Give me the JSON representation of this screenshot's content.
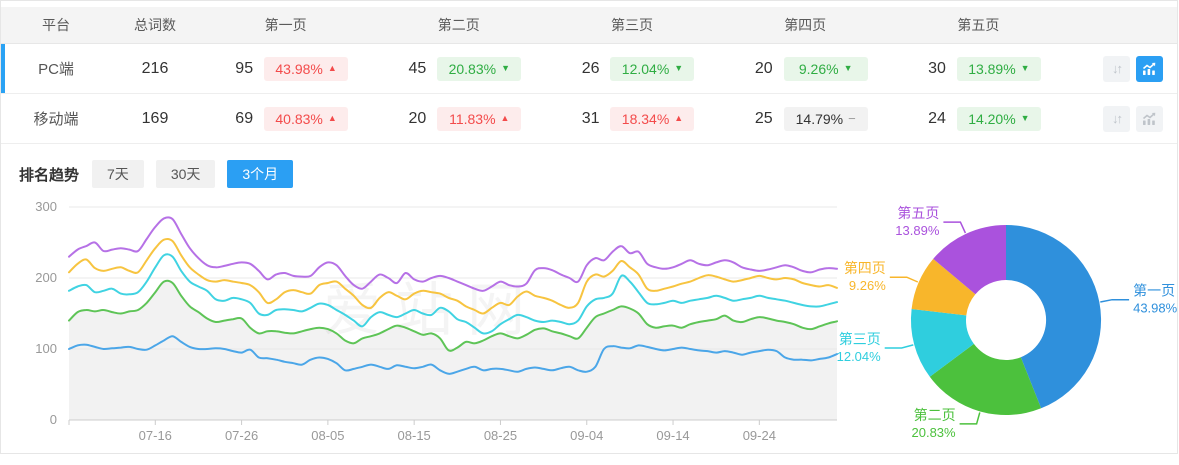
{
  "table": {
    "headers": {
      "platform": "平台",
      "total": "总词数",
      "pages": [
        "第一页",
        "第二页",
        "第三页",
        "第四页",
        "第五页"
      ]
    },
    "rows": [
      {
        "platform": "PC端",
        "total": "216",
        "selected": true,
        "trend_active": true,
        "pages": [
          {
            "count": "95",
            "pct": "43.98%",
            "dir": "up",
            "tone": "red"
          },
          {
            "count": "45",
            "pct": "20.83%",
            "dir": "down",
            "tone": "green"
          },
          {
            "count": "26",
            "pct": "12.04%",
            "dir": "down",
            "tone": "green"
          },
          {
            "count": "20",
            "pct": "9.26%",
            "dir": "down",
            "tone": "green"
          },
          {
            "count": "30",
            "pct": "13.89%",
            "dir": "down",
            "tone": "green"
          }
        ]
      },
      {
        "platform": "移动端",
        "total": "169",
        "selected": false,
        "trend_active": false,
        "pages": [
          {
            "count": "69",
            "pct": "40.83%",
            "dir": "up",
            "tone": "red"
          },
          {
            "count": "20",
            "pct": "11.83%",
            "dir": "up",
            "tone": "red"
          },
          {
            "count": "31",
            "pct": "18.34%",
            "dir": "up",
            "tone": "red"
          },
          {
            "count": "25",
            "pct": "14.79%",
            "dir": "flat",
            "tone": "gray"
          },
          {
            "count": "24",
            "pct": "14.20%",
            "dir": "down",
            "tone": "green"
          }
        ]
      }
    ]
  },
  "trend_section": {
    "title": "排名趋势",
    "tabs": [
      {
        "label": "7天",
        "active": false
      },
      {
        "label": "30天",
        "active": false
      },
      {
        "label": "3个月",
        "active": true
      }
    ]
  },
  "watermark": "爱站网",
  "colors": {
    "accent_blue": "#2b9ff3",
    "selected_bar": "#2aa2f4"
  },
  "chart_data": [
    {
      "type": "line",
      "title": "排名趋势 3个月",
      "ylim": [
        0,
        300
      ],
      "y_ticks": [
        0,
        100,
        200,
        300
      ],
      "x_tick_labels": [
        "07-16",
        "07-26",
        "08-05",
        "08-15",
        "08-25",
        "09-04",
        "09-14",
        "09-24"
      ],
      "x_tick_indices": [
        10,
        20,
        30,
        40,
        50,
        60,
        70,
        80
      ],
      "grid": true,
      "series": [
        {
          "name": "第一页",
          "color": "#4ba6e8",
          "area": false,
          "values": [
            100,
            105,
            106,
            103,
            100,
            101,
            102,
            103,
            100,
            99,
            105,
            112,
            118,
            110,
            103,
            100,
            100,
            101,
            100,
            97,
            95,
            99,
            88,
            87,
            85,
            82,
            80,
            78,
            85,
            88,
            86,
            80,
            70,
            72,
            75,
            78,
            75,
            72,
            77,
            75,
            73,
            75,
            78,
            70,
            65,
            68,
            72,
            75,
            70,
            72,
            72,
            70,
            68,
            72,
            74,
            72,
            70,
            73,
            75,
            70,
            68,
            75,
            100,
            104,
            102,
            101,
            105,
            103,
            100,
            98,
            100,
            102,
            100,
            98,
            97,
            95,
            97,
            95,
            92,
            95,
            97,
            99,
            97,
            88,
            85,
            85,
            84,
            86,
            88,
            93
          ]
        },
        {
          "name": "第二页",
          "color": "#5ec457",
          "area": true,
          "values": [
            140,
            152,
            155,
            153,
            155,
            152,
            150,
            153,
            155,
            165,
            180,
            195,
            193,
            175,
            160,
            152,
            143,
            138,
            140,
            142,
            143,
            130,
            122,
            125,
            125,
            123,
            122,
            125,
            128,
            130,
            128,
            122,
            112,
            108,
            115,
            118,
            122,
            128,
            133,
            130,
            125,
            120,
            122,
            115,
            98,
            102,
            110,
            108,
            112,
            118,
            122,
            118,
            115,
            120,
            127,
            129,
            125,
            122,
            118,
            115,
            130,
            145,
            150,
            155,
            160,
            157,
            150,
            135,
            130,
            132,
            133,
            130,
            135,
            138,
            140,
            142,
            147,
            140,
            138,
            142,
            145,
            143,
            140,
            138,
            135,
            130,
            128,
            132,
            136,
            139
          ]
        },
        {
          "name": "第三页",
          "color": "#40d3e2",
          "area": false,
          "values": [
            182,
            188,
            190,
            180,
            182,
            185,
            178,
            177,
            180,
            195,
            215,
            232,
            230,
            210,
            195,
            188,
            182,
            170,
            168,
            172,
            170,
            165,
            150,
            148,
            155,
            156,
            155,
            153,
            158,
            164,
            162,
            155,
            148,
            140,
            132,
            145,
            152,
            148,
            145,
            150,
            155,
            150,
            148,
            158,
            153,
            142,
            138,
            130,
            122,
            125,
            135,
            142,
            148,
            145,
            140,
            138,
            140,
            138,
            135,
            140,
            160,
            170,
            172,
            178,
            203,
            195,
            180,
            165,
            163,
            165,
            168,
            165,
            168,
            170,
            172,
            175,
            172,
            168,
            170,
            172,
            175,
            172,
            170,
            168,
            165,
            162,
            160,
            160,
            163,
            166
          ]
        },
        {
          "name": "第四页",
          "color": "#f7c440",
          "area": false,
          "values": [
            208,
            220,
            226,
            214,
            210,
            213,
            215,
            210,
            208,
            225,
            242,
            254,
            252,
            232,
            215,
            205,
            197,
            195,
            197,
            195,
            193,
            190,
            180,
            165,
            170,
            180,
            183,
            180,
            178,
            190,
            193,
            195,
            185,
            175,
            162,
            158,
            172,
            180,
            175,
            170,
            178,
            182,
            180,
            178,
            172,
            168,
            160,
            155,
            150,
            158,
            165,
            162,
            174,
            181,
            175,
            172,
            168,
            162,
            158,
            165,
            195,
            205,
            202,
            210,
            224,
            215,
            205,
            185,
            182,
            185,
            188,
            192,
            195,
            200,
            204,
            202,
            198,
            195,
            197,
            200,
            203,
            200,
            198,
            200,
            198,
            193,
            190,
            188,
            190,
            186
          ]
        },
        {
          "name": "第五页",
          "color": "#b671e6",
          "area": false,
          "values": [
            230,
            240,
            245,
            250,
            238,
            240,
            242,
            240,
            238,
            255,
            272,
            284,
            283,
            262,
            242,
            228,
            218,
            215,
            217,
            220,
            222,
            220,
            210,
            198,
            205,
            207,
            203,
            202,
            203,
            215,
            222,
            218,
            203,
            190,
            185,
            195,
            205,
            200,
            193,
            207,
            198,
            195,
            200,
            203,
            200,
            195,
            190,
            185,
            182,
            188,
            195,
            190,
            188,
            192,
            211,
            214,
            211,
            205,
            200,
            195,
            218,
            228,
            225,
            237,
            245,
            235,
            237,
            220,
            215,
            213,
            215,
            220,
            225,
            220,
            218,
            222,
            225,
            222,
            215,
            212,
            210,
            212,
            215,
            218,
            215,
            210,
            208,
            212,
            214,
            213
          ]
        }
      ]
    },
    {
      "type": "pie",
      "donut": true,
      "segments": [
        {
          "label": "第一页",
          "value": 43.98,
          "pct": "43.98%",
          "color": "#2f90dc"
        },
        {
          "label": "第二页",
          "value": 20.83,
          "pct": "20.83%",
          "color": "#4cc13d"
        },
        {
          "label": "第三页",
          "value": 12.04,
          "pct": "12.04%",
          "color": "#2fcede"
        },
        {
          "label": "第四页",
          "value": 9.26,
          "pct": "9.26%",
          "color": "#f8b62b"
        },
        {
          "label": "第五页",
          "value": 13.89,
          "pct": "13.89%",
          "color": "#aa52dd"
        }
      ]
    }
  ]
}
